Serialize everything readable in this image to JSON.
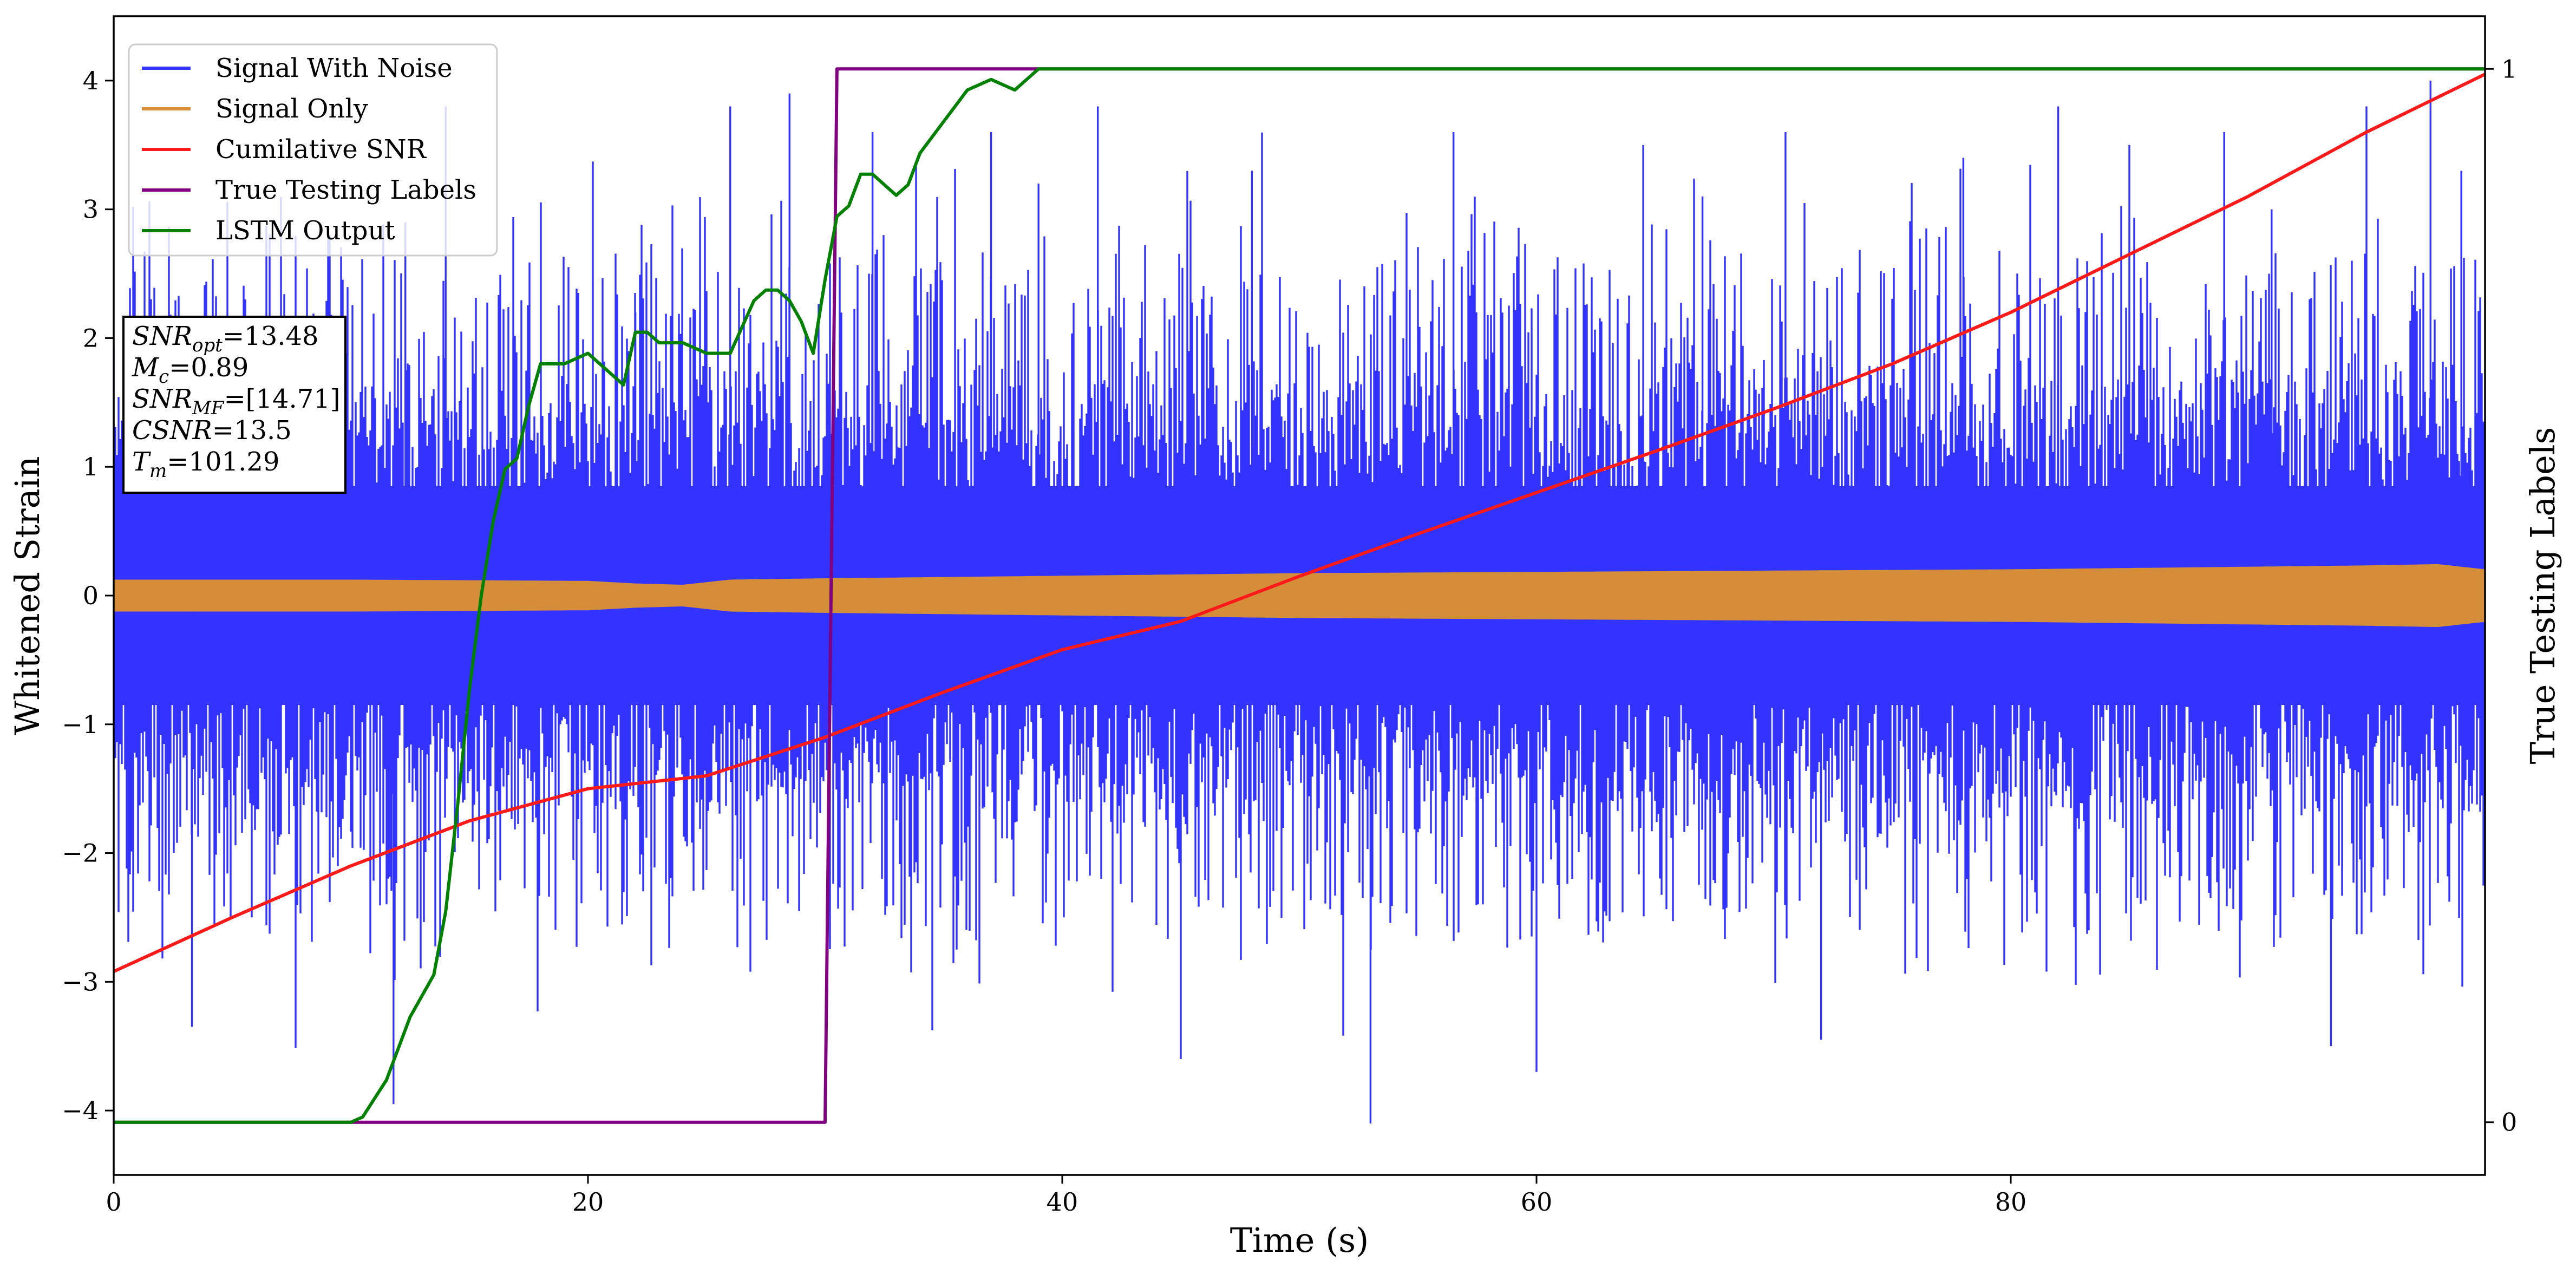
{
  "chart_data": {
    "type": "line",
    "title": "",
    "xlabel": "Time (s)",
    "ylabel_left": "Whitened Strain",
    "ylabel_right": "True Testing Labels",
    "xlim": [
      0,
      100
    ],
    "ylim_left": [
      -4.5,
      4.5
    ],
    "ylim_right": [
      -0.05,
      1.05
    ],
    "x_ticks": [
      0,
      20,
      40,
      60,
      80
    ],
    "x_tick_labels": [
      "0",
      "20",
      "40",
      "60",
      "80"
    ],
    "y_left_ticks": [
      -4,
      -3,
      -2,
      -1,
      0,
      1,
      2,
      3,
      4
    ],
    "y_left_tick_labels": [
      "−4",
      "−3",
      "−2",
      "−1",
      "0",
      "1",
      "2",
      "3",
      "4"
    ],
    "y_right_ticks": [
      0,
      1
    ],
    "y_right_tick_labels": [
      "0",
      "1"
    ],
    "grid": false,
    "legend_position": "top-left",
    "series": [
      {
        "name": "Signal With Noise",
        "axis": "left",
        "color": "#3333ff",
        "noise_band": {
          "p10": 0.85,
          "p50": 1.45,
          "p90": 2.15,
          "peak": 4.0,
          "trough": -4.1
        }
      },
      {
        "name": "Signal Only",
        "axis": "left",
        "color": "#d48e3a",
        "envelope": {
          "x": [
            0,
            10,
            20,
            22,
            24,
            26,
            30,
            40,
            50,
            60,
            70,
            80,
            90,
            95,
            98,
            100
          ],
          "amplitude": [
            0.12,
            0.12,
            0.11,
            0.09,
            0.08,
            0.12,
            0.13,
            0.15,
            0.17,
            0.18,
            0.19,
            0.2,
            0.22,
            0.23,
            0.24,
            0.2
          ]
        }
      },
      {
        "name": "Cumilative SNR",
        "axis": "left",
        "color": "#ff1a1a",
        "x": [
          0,
          5,
          10,
          15,
          20,
          25,
          30,
          35,
          40,
          45,
          50,
          55,
          60,
          65,
          70,
          75,
          80,
          85,
          90,
          95,
          100
        ],
        "y": [
          -2.92,
          -2.5,
          -2.1,
          -1.75,
          -1.5,
          -1.4,
          -1.1,
          -0.75,
          -0.42,
          -0.2,
          0.15,
          0.48,
          0.8,
          1.12,
          1.45,
          1.8,
          2.2,
          2.65,
          3.1,
          3.6,
          4.05
        ]
      },
      {
        "name": "True Testing Labels",
        "axis": "right",
        "color": "#800080",
        "x": [
          0,
          30,
          30.5,
          100
        ],
        "y": [
          0,
          0,
          1,
          1
        ]
      },
      {
        "name": "LSTM Output",
        "axis": "right",
        "color": "#008000",
        "x": [
          0,
          10,
          10.5,
          11.5,
          12.5,
          13.5,
          14,
          14.5,
          15,
          15.5,
          16,
          16.5,
          17,
          17.5,
          18,
          19,
          20,
          20.5,
          21,
          21.5,
          22,
          22.5,
          23,
          24,
          25,
          26,
          27,
          27.5,
          28,
          28.5,
          29,
          29.5,
          30,
          30.5,
          31,
          31.5,
          32,
          32.5,
          33,
          33.5,
          34,
          35,
          36,
          37,
          38,
          39,
          40,
          42,
          45,
          50,
          55,
          60,
          100
        ],
        "y": [
          0,
          0,
          0.005,
          0.04,
          0.1,
          0.14,
          0.2,
          0.3,
          0.41,
          0.5,
          0.57,
          0.62,
          0.63,
          0.68,
          0.72,
          0.72,
          0.73,
          0.72,
          0.71,
          0.7,
          0.75,
          0.75,
          0.74,
          0.74,
          0.73,
          0.73,
          0.78,
          0.79,
          0.79,
          0.78,
          0.76,
          0.73,
          0.8,
          0.86,
          0.87,
          0.9,
          0.9,
          0.89,
          0.88,
          0.89,
          0.92,
          0.95,
          0.98,
          0.99,
          0.98,
          1.0,
          1.0,
          1.0,
          1.0,
          1.0,
          1.0,
          1.0,
          1.0
        ]
      }
    ],
    "annotation": {
      "position": "upper-left",
      "lines": [
        {
          "base": "SNR",
          "sub": "opt",
          "rest": "=13.48"
        },
        {
          "base": "M",
          "sub": "c",
          "rest": "=0.89"
        },
        {
          "base": "SNR",
          "sub": "MF",
          "rest": "=[14.71]"
        },
        {
          "base": "CSNR",
          "sub": "",
          "rest": "=13.5"
        },
        {
          "base": "T",
          "sub": "m",
          "rest": "=101.29"
        }
      ]
    }
  }
}
